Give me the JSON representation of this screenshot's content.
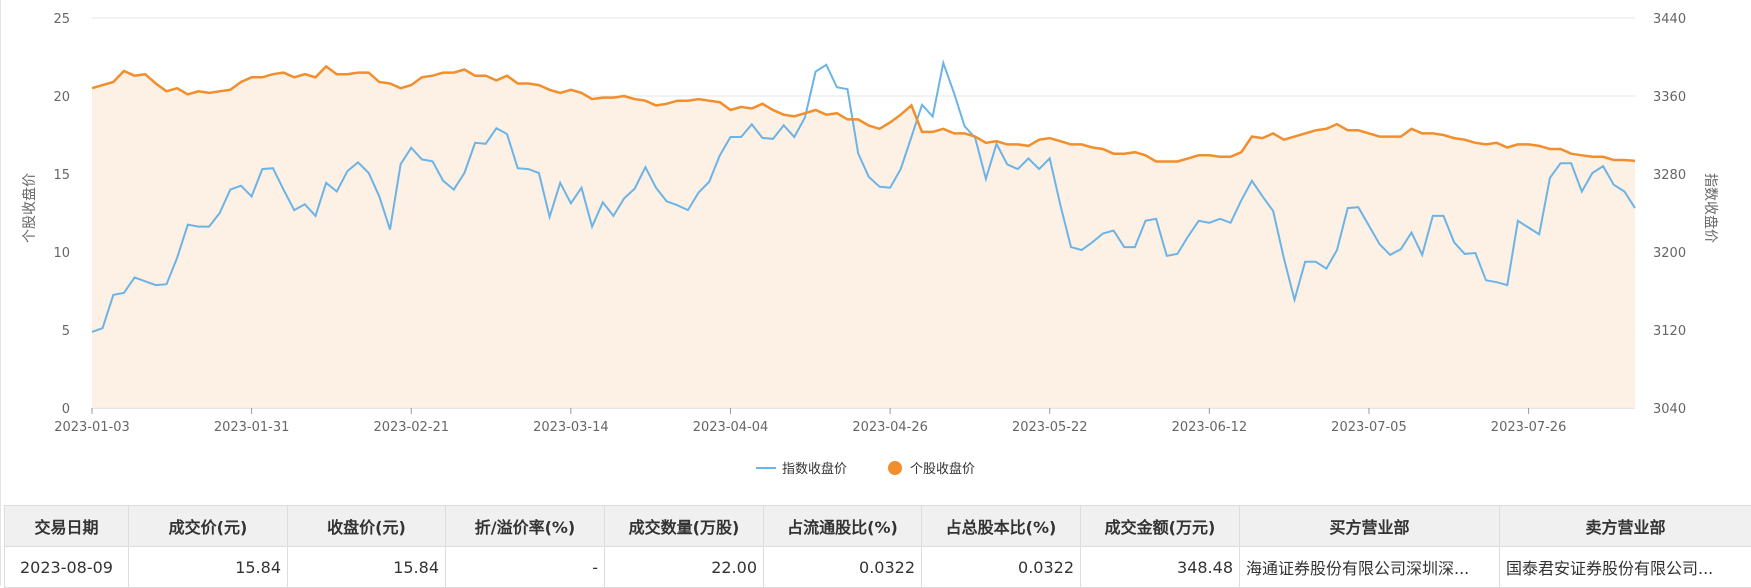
{
  "chart_data": {
    "type": "line",
    "x_ticks": [
      "2023-01-03",
      "2023-01-31",
      "2023-02-21",
      "2023-03-14",
      "2023-04-04",
      "2023-04-26",
      "2023-05-22",
      "2023-06-12",
      "2023-07-05",
      "2023-07-26"
    ],
    "left_axis": {
      "label": "个股收盘价",
      "ylim": [
        0,
        25
      ],
      "ticks": [
        "0",
        "5",
        "10",
        "15",
        "20",
        "25"
      ]
    },
    "right_axis": {
      "label": "指数收盘价",
      "ylim": [
        3040,
        3440
      ],
      "ticks": [
        "3040",
        "3120",
        "3200",
        "3280",
        "3360",
        "3440"
      ]
    },
    "grid": true,
    "legend_position": "bottom-center",
    "series": [
      {
        "name": "指数收盘价",
        "axis": "right",
        "color": "#6cb4e6",
        "values": [
          3118,
          3122,
          3156,
          3158,
          3174,
          3170,
          3166,
          3167,
          3194,
          3228,
          3226,
          3226,
          3240,
          3264,
          3268,
          3257,
          3285,
          3286,
          3264,
          3243,
          3249,
          3237,
          3271,
          3262,
          3283,
          3292,
          3281,
          3257,
          3223,
          3290,
          3307,
          3295,
          3293,
          3273,
          3264,
          3281,
          3312,
          3311,
          3327,
          3321,
          3286,
          3285,
          3281,
          3236,
          3271,
          3250,
          3266,
          3226,
          3251,
          3237,
          3255,
          3265,
          3287,
          3266,
          3252,
          3248,
          3243,
          3261,
          3272,
          3299,
          3318,
          3318,
          3331,
          3317,
          3316,
          3330,
          3318,
          3338,
          3385,
          3392,
          3369,
          3367,
          3301,
          3277,
          3267,
          3266,
          3285,
          3318,
          3351,
          3339,
          3394,
          3363,
          3329,
          3317,
          3275,
          3311,
          3290,
          3285,
          3296,
          3285,
          3296,
          3248,
          3205,
          3202,
          3210,
          3219,
          3222,
          3205,
          3205,
          3232,
          3234,
          3196,
          3198,
          3216,
          3232,
          3230,
          3234,
          3230,
          3253,
          3273,
          3257,
          3242,
          3194,
          3151,
          3190,
          3190,
          3183,
          3202,
          3245,
          3246,
          3227,
          3208,
          3197,
          3203,
          3220,
          3197,
          3237,
          3237,
          3210,
          3198,
          3199,
          3171,
          3169,
          3166,
          3232,
          3225,
          3218,
          3276,
          3291,
          3291,
          3262,
          3281,
          3288,
          3269,
          3262,
          3245
        ]
      },
      {
        "name": "个股收盘价",
        "axis": "left",
        "color": "#f28e2b",
        "values": [
          20.5,
          20.7,
          20.9,
          21.6,
          21.3,
          21.4,
          20.8,
          20.3,
          20.5,
          20.1,
          20.3,
          20.2,
          20.3,
          20.4,
          20.9,
          21.2,
          21.2,
          21.4,
          21.5,
          21.2,
          21.4,
          21.2,
          21.9,
          21.4,
          21.4,
          21.5,
          21.5,
          20.9,
          20.8,
          20.5,
          20.7,
          21.2,
          21.3,
          21.5,
          21.5,
          21.7,
          21.3,
          21.3,
          21.0,
          21.3,
          20.8,
          20.8,
          20.7,
          20.4,
          20.2,
          20.4,
          20.2,
          19.8,
          19.9,
          19.9,
          20.0,
          19.8,
          19.7,
          19.4,
          19.5,
          19.7,
          19.7,
          19.8,
          19.7,
          19.6,
          19.1,
          19.3,
          19.2,
          19.5,
          19.1,
          18.8,
          18.7,
          18.9,
          19.1,
          18.8,
          18.9,
          18.5,
          18.5,
          18.1,
          17.9,
          18.3,
          18.8,
          19.4,
          17.7,
          17.7,
          17.9,
          17.6,
          17.6,
          17.4,
          17.0,
          17.1,
          16.9,
          16.9,
          16.8,
          17.2,
          17.3,
          17.1,
          16.9,
          16.9,
          16.7,
          16.6,
          16.3,
          16.3,
          16.4,
          16.2,
          15.8,
          15.8,
          15.8,
          16.0,
          16.2,
          16.2,
          16.1,
          16.1,
          16.4,
          17.4,
          17.3,
          17.6,
          17.2,
          17.4,
          17.6,
          17.8,
          17.9,
          18.2,
          17.8,
          17.8,
          17.6,
          17.4,
          17.4,
          17.4,
          17.9,
          17.6,
          17.6,
          17.5,
          17.3,
          17.2,
          17.0,
          16.9,
          17.0,
          16.7,
          16.9,
          16.9,
          16.8,
          16.6,
          16.6,
          16.3,
          16.2,
          16.1,
          16.1,
          15.9,
          15.9,
          15.84
        ]
      }
    ]
  },
  "table": {
    "headers": [
      "交易日期",
      "成交价(元)",
      "收盘价(元)",
      "折/溢价率(%)",
      "成交数量(万股)",
      "占流通股比(%)",
      "占总股本比(%)",
      "成交金额(万元)",
      "买方营业部",
      "卖方营业部"
    ],
    "rows": [
      [
        "2023-08-09",
        "15.84",
        "15.84",
        "-",
        "22.00",
        "0.0322",
        "0.0322",
        "348.48",
        "海通证券股份有限公司深圳深...",
        "国泰君安证券股份有限公司..."
      ]
    ]
  }
}
